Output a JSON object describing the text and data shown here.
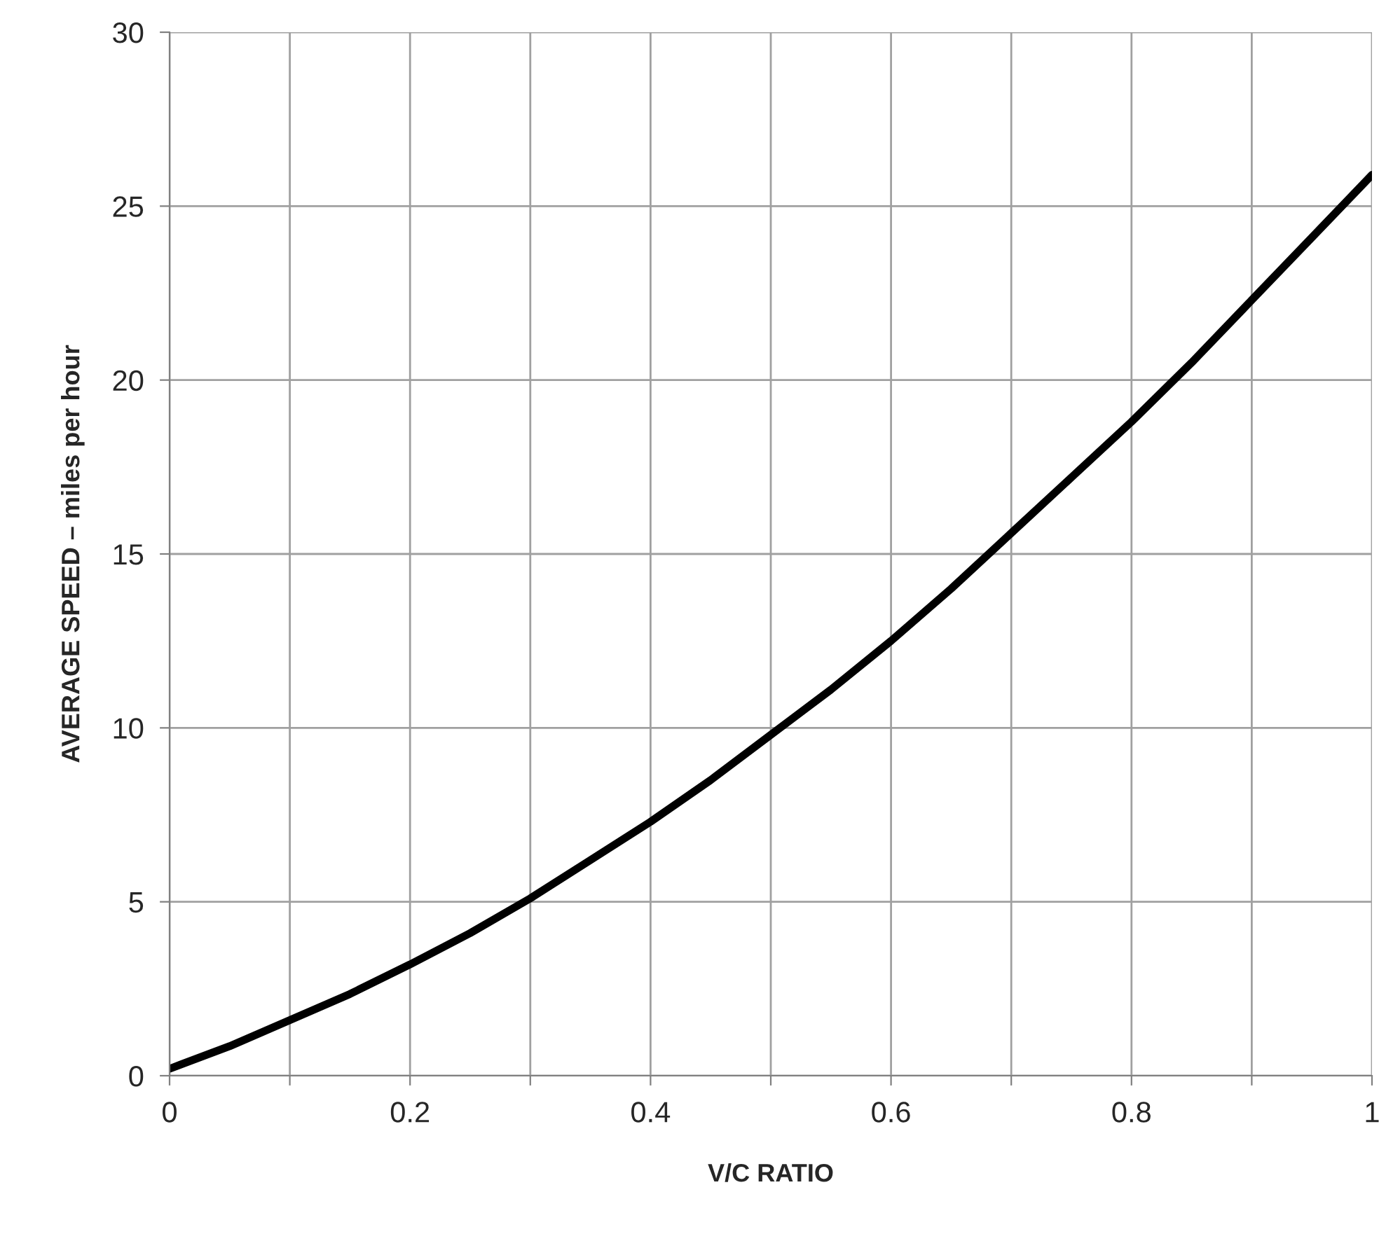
{
  "chart_data": {
    "type": "line",
    "xlabel": "V/C RATIO",
    "ylabel": "AVERAGE SPEED – miles per hour",
    "series": [
      {
        "color": "#000000",
        "x": [
          0,
          0.05,
          0.1,
          0.15,
          0.2,
          0.25,
          0.3,
          0.35,
          0.4,
          0.45,
          0.5,
          0.55,
          0.6,
          0.65,
          0.7,
          0.75,
          0.8,
          0.85,
          0.9,
          0.95,
          1.0
        ],
        "values": [
          0.2,
          0.85,
          1.6,
          2.35,
          3.2,
          4.1,
          5.1,
          6.2,
          7.3,
          8.5,
          9.8,
          11.1,
          12.5,
          14.0,
          15.6,
          17.2,
          18.8,
          20.5,
          22.3,
          24.1,
          25.9
        ]
      }
    ],
    "xlim": [
      0,
      1
    ],
    "xticks": [
      0,
      {
        "value": 0.1,
        "label": null
      },
      0.2,
      {
        "value": 0.3,
        "label": null
      },
      0.4,
      {
        "value": 0.5,
        "label": null
      },
      0.6,
      {
        "value": 0.7,
        "label": null
      },
      0.8,
      {
        "value": 0.9,
        "label": null
      },
      1
    ],
    "ylim": [
      0,
      30
    ],
    "yticks": [
      0,
      5,
      10,
      15,
      20,
      25,
      30
    ],
    "grid": true,
    "legend": false,
    "marker": "none",
    "line_style": "solid"
  }
}
